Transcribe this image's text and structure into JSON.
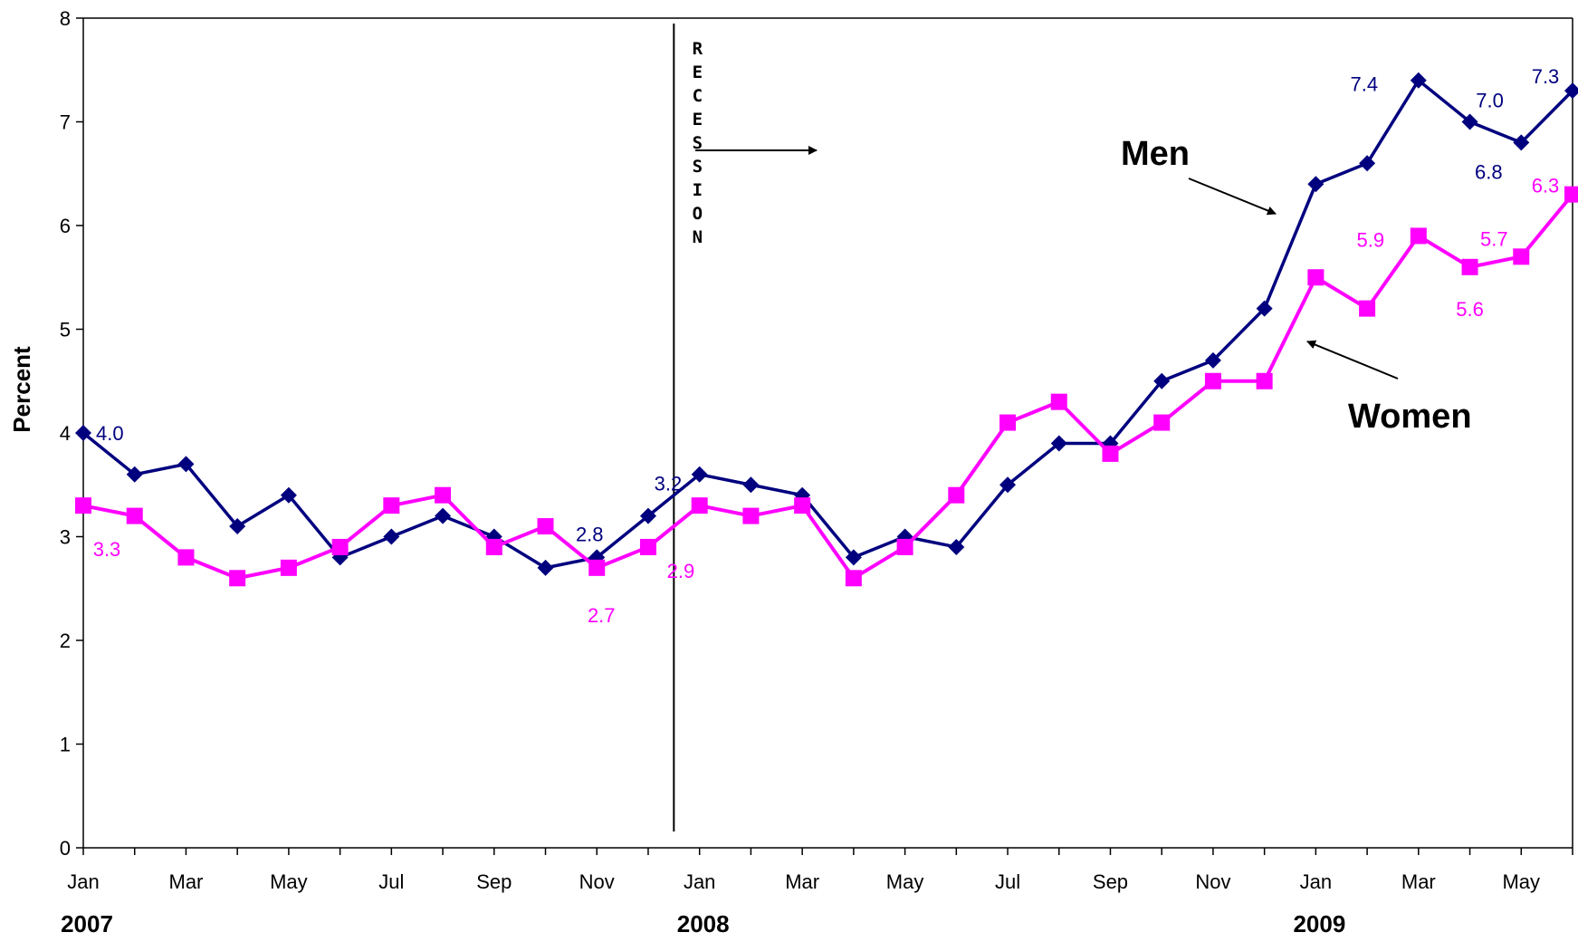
{
  "chart_data": {
    "type": "line",
    "ylabel": "Percent",
    "xlabel": "",
    "ylim": [
      0,
      8
    ],
    "yticks": [
      "0",
      "1",
      "2",
      "3",
      "4",
      "5",
      "6",
      "7",
      "8"
    ],
    "x": [
      "Jan 2007",
      "Feb 2007",
      "Mar 2007",
      "Apr 2007",
      "May 2007",
      "Jun 2007",
      "Jul 2007",
      "Aug 2007",
      "Sep 2007",
      "Oct 2007",
      "Nov 2007",
      "Dec 2007",
      "Jan 2008",
      "Feb 2008",
      "Mar 2008",
      "Apr 2008",
      "May 2008",
      "Jun 2008",
      "Jul 2008",
      "Aug 2008",
      "Sep 2008",
      "Oct 2008",
      "Nov 2008",
      "Dec 2008",
      "Jan 2009",
      "Feb 2009",
      "Mar 2009",
      "Apr 2009",
      "May 2009",
      "Jun 2009"
    ],
    "tick_labels": [
      "Jan",
      "",
      "Mar",
      "",
      "May",
      "",
      "Jul",
      "",
      "Sep",
      "",
      "Nov",
      "",
      "Jan",
      "",
      "Mar",
      "",
      "May",
      "",
      "Jul",
      "",
      "Sep",
      "",
      "Nov",
      "",
      "Jan",
      "",
      "Mar",
      "",
      "May",
      ""
    ],
    "years": [
      {
        "label": "2007",
        "at": 0
      },
      {
        "label": "2008",
        "at": 12
      },
      {
        "label": "2009",
        "at": 24
      }
    ],
    "series": [
      {
        "name": "Men",
        "color": "#00007f",
        "marker": "diamond",
        "values": [
          4.0,
          3.6,
          3.7,
          3.1,
          3.4,
          2.8,
          3.0,
          3.2,
          3.0,
          2.7,
          2.8,
          3.2,
          3.6,
          3.5,
          3.4,
          2.8,
          3.0,
          2.9,
          3.5,
          3.9,
          3.9,
          4.5,
          4.7,
          5.2,
          6.4,
          6.6,
          7.4,
          7.0,
          6.8,
          7.3
        ],
        "data_labels": [
          {
            "index": 0,
            "text": "4.0"
          },
          {
            "index": 10,
            "text": "2.8"
          },
          {
            "index": 11,
            "text": "3.2"
          },
          {
            "index": 26,
            "text": "7.4"
          },
          {
            "index": 27,
            "text": "7.0"
          },
          {
            "index": 28,
            "text": "6.8"
          },
          {
            "index": 29,
            "text": "7.3"
          }
        ]
      },
      {
        "name": "Women",
        "color": "#ff00ff",
        "marker": "square",
        "values": [
          3.3,
          3.2,
          2.8,
          2.6,
          2.7,
          2.9,
          3.3,
          3.4,
          2.9,
          3.1,
          2.7,
          2.9,
          3.3,
          3.2,
          3.3,
          2.6,
          2.9,
          3.4,
          4.1,
          4.3,
          3.8,
          4.1,
          4.5,
          4.5,
          5.5,
          5.2,
          5.9,
          5.6,
          5.7,
          6.3
        ],
        "data_labels": [
          {
            "index": 0,
            "text": "3.3"
          },
          {
            "index": 10,
            "text": "2.7"
          },
          {
            "index": 11,
            "text": "2.9"
          },
          {
            "index": 26,
            "text": "5.9"
          },
          {
            "index": 27,
            "text": "5.6"
          },
          {
            "index": 28,
            "text": "5.7"
          },
          {
            "index": 29,
            "text": "6.3"
          }
        ]
      }
    ],
    "annotations": {
      "recession_text": "RECESSION",
      "recession_at": 11.5,
      "men_label": "Men",
      "women_label": "Women"
    },
    "grid": false,
    "legend": "none"
  }
}
